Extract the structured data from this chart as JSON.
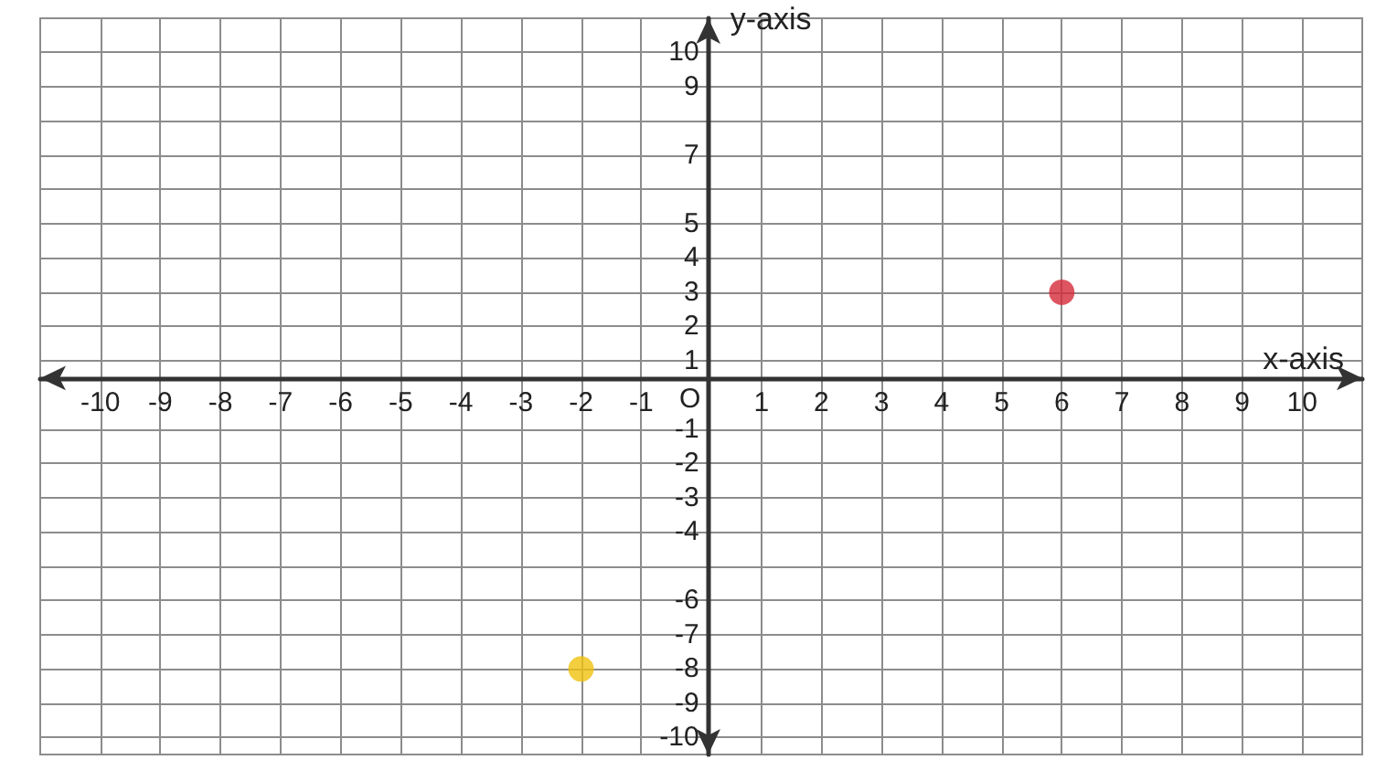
{
  "chart_data": {
    "type": "scatter",
    "xlabel": "x-axis",
    "ylabel": "y-axis",
    "x": [
      6,
      -2
    ],
    "values": [
      3,
      -8
    ],
    "colors": [
      "#d52b3a",
      "#f0c20e"
    ],
    "xlim": [
      -11,
      11
    ],
    "ylim": [
      -10.5,
      11
    ],
    "xticks": [
      -10,
      -9,
      -8,
      -7,
      -6,
      -5,
      -4,
      -3,
      -2,
      -1,
      1,
      2,
      3,
      4,
      5,
      6,
      7,
      8,
      9,
      10
    ],
    "yticks": [
      -10,
      -9,
      -8,
      -7,
      -6,
      {
        "value": -5,
        "label": null
      },
      -4,
      -3,
      -2,
      -1,
      1,
      2,
      3,
      4,
      5,
      {
        "value": 6,
        "label": null
      },
      7,
      {
        "value": 8,
        "label": null
      },
      9,
      10
    ],
    "annotations": [
      "O"
    ],
    "grid": true,
    "marker": "circle"
  }
}
